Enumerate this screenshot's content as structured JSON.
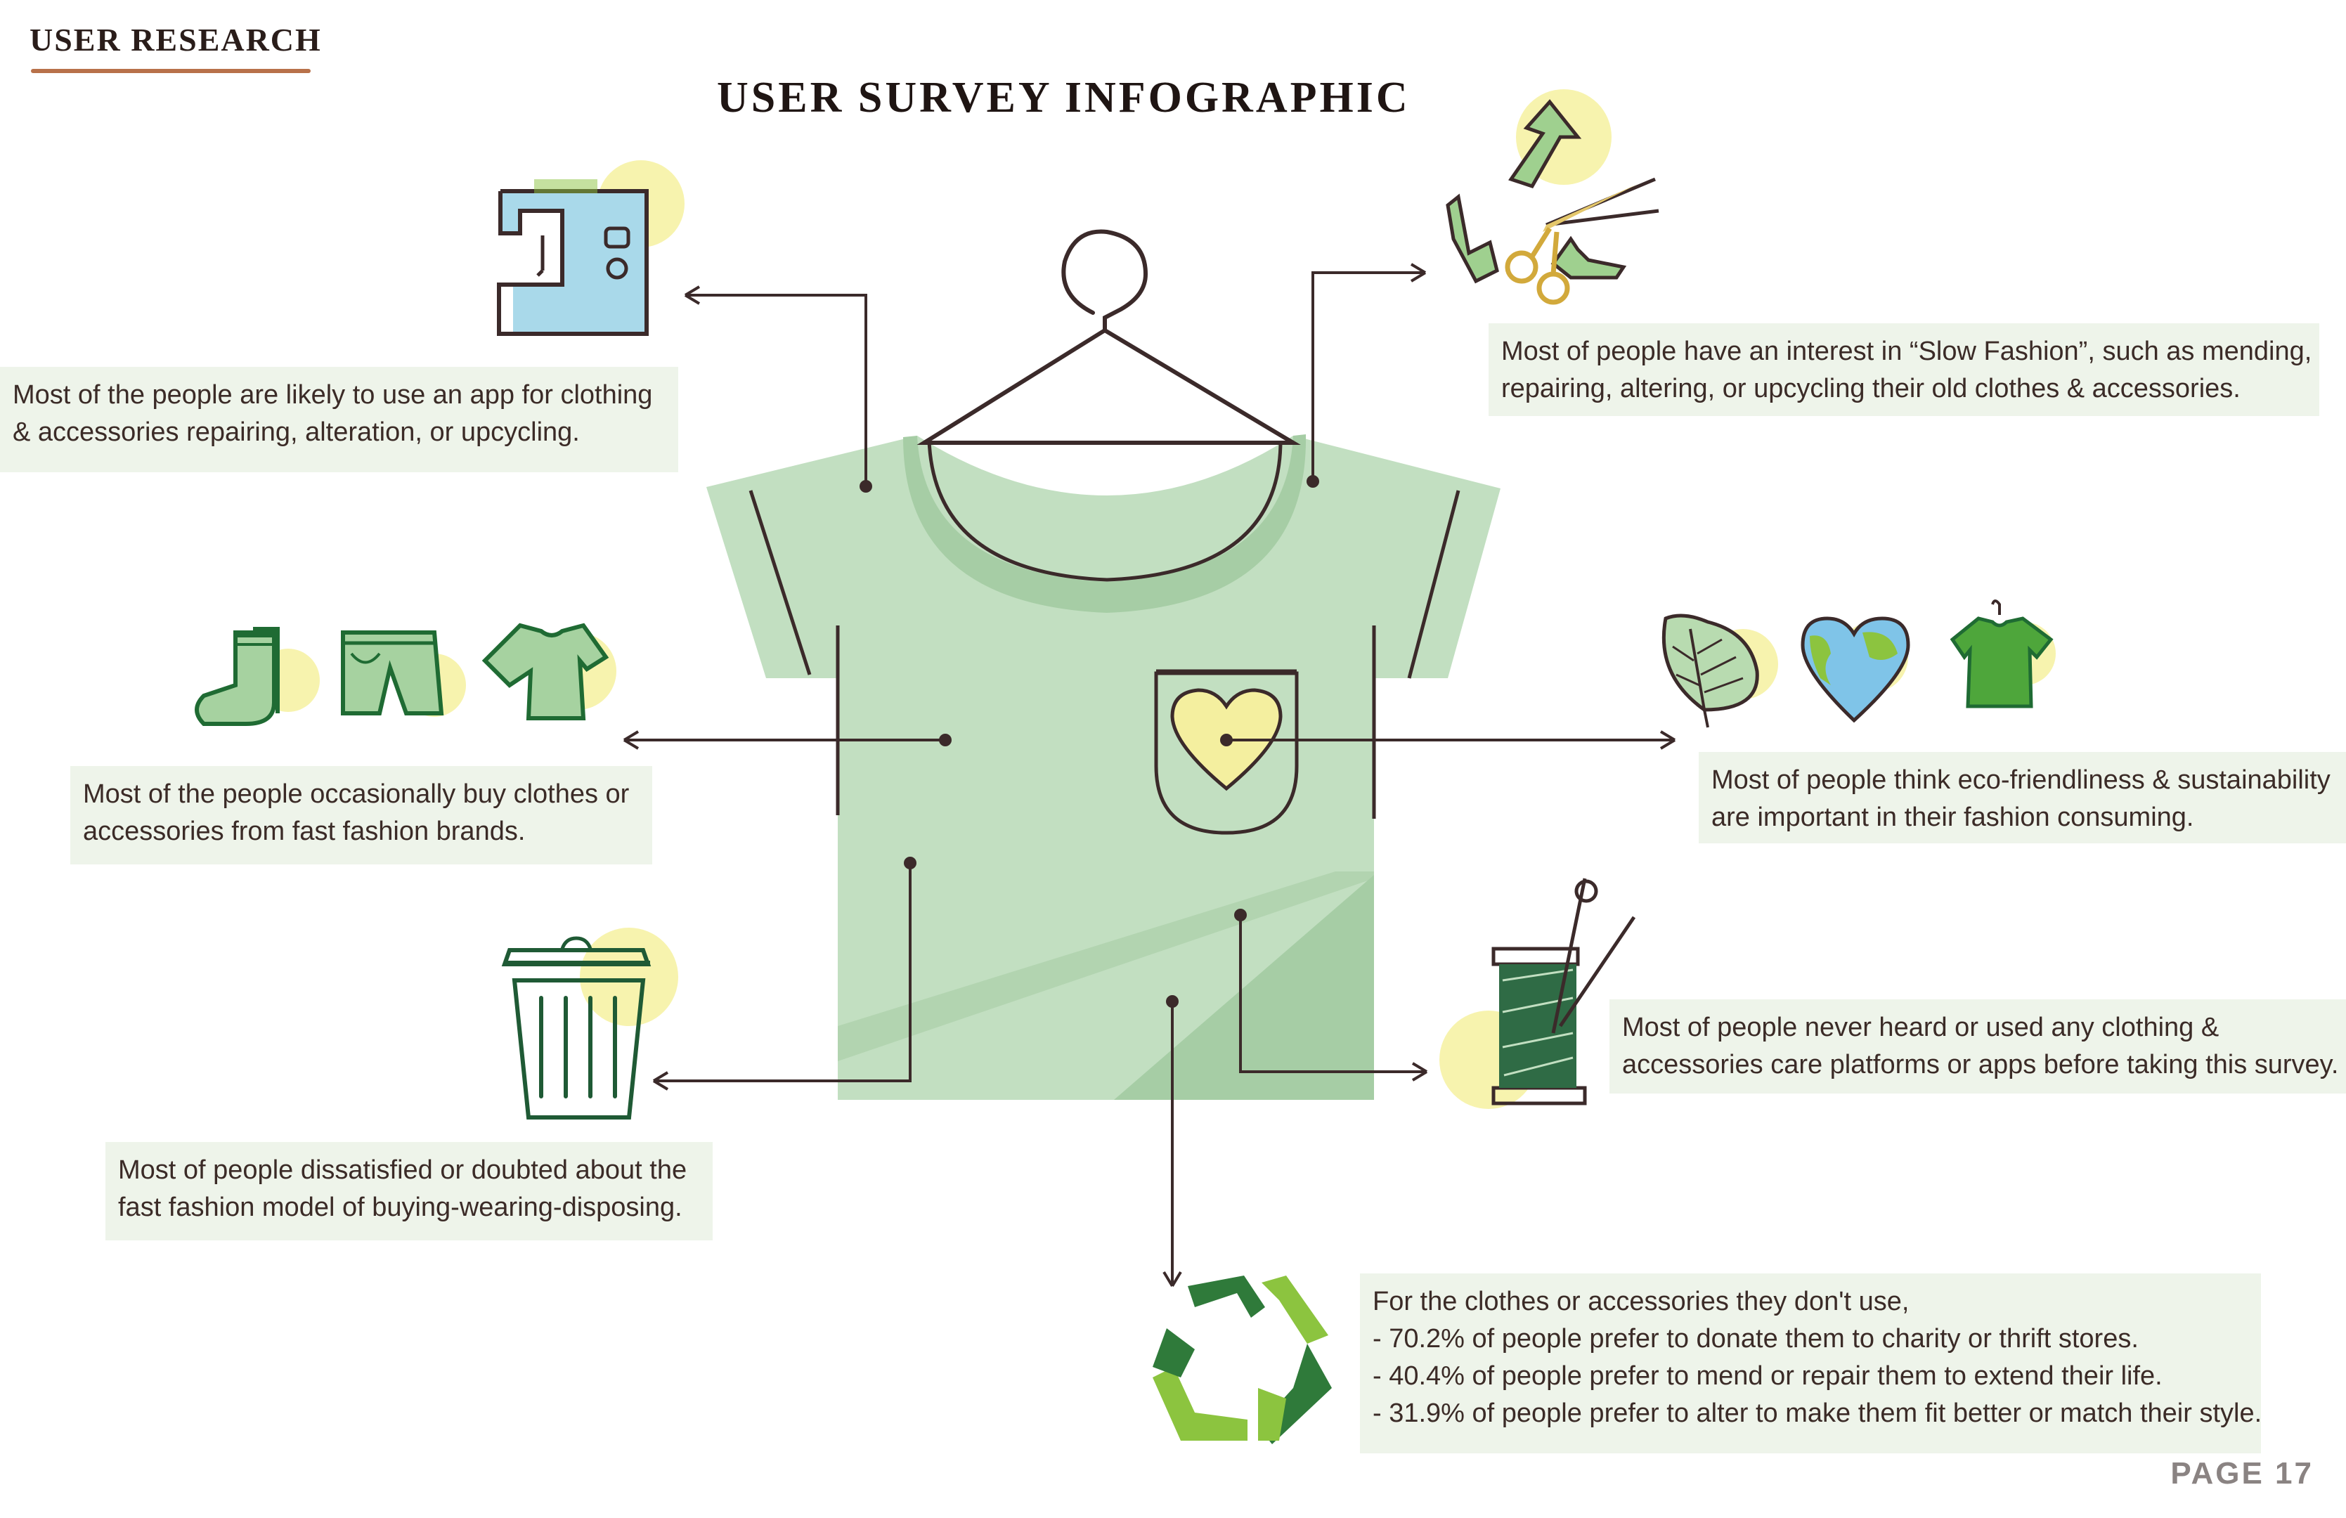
{
  "header": {
    "section_label": "USER RESEARCH",
    "title": "USER SURVEY INFOGRAPHIC"
  },
  "icons": [
    "sewing-machine-icon",
    "upcycle-arrows-scissors-icon",
    "socks-icon",
    "shorts-icon",
    "tshirt-icon",
    "leaf-icon",
    "earth-heart-icon",
    "hanging-shirt-icon",
    "trash-bin-icon",
    "thread-spool-icon",
    "recycle-icon",
    "hanger-icon",
    "heart-pocket-icon"
  ],
  "colors": {
    "shirt": "#c2dfc1",
    "shirt_shadow": "#a6cda5",
    "note_bg": "#eef4ea",
    "accent_yellow": "#f7f3ae",
    "line": "#3b2a2a",
    "underline": "#b8714a",
    "dark_green": "#1f6b33",
    "light_green": "#8cc43f"
  },
  "findings": {
    "app_usage": {
      "line1": "Most of the people are likely to use an app for clothing",
      "line2": "& accessories repairing, alteration, or upcycling."
    },
    "slow_fashion": {
      "line1": "Most of people have an interest in “Slow Fashion”, such as mending,",
      "line2": "repairing, altering, or upcycling their old clothes & accessories."
    },
    "fast_fashion": {
      "line1": "Most of the people occasionally buy clothes or",
      "line2": "accessories from fast fashion brands."
    },
    "eco": {
      "line1": "Most of people think eco-friendliness & sustainability",
      "line2": "are important in their fashion consuming."
    },
    "dissatisfied": {
      "line1": "Most of people dissatisfied or doubted about the",
      "line2": "fast fashion model of buying-wearing-disposing."
    },
    "care_platforms": {
      "line1": "Most of people never heard or used any clothing &",
      "line2": "accessories care platforms or apps before taking this survey."
    },
    "disposal": {
      "intro": "For the clothes or accessories they don't use,",
      "items": [
        "- 70.2% of people prefer to donate them to charity or thrift stores.",
        "- 40.4% of people prefer to mend or repair them to extend their life.",
        "- 31.9% of people prefer to alter to make them fit better or match their style."
      ]
    }
  },
  "footer": {
    "page_label": "PAGE 17"
  }
}
